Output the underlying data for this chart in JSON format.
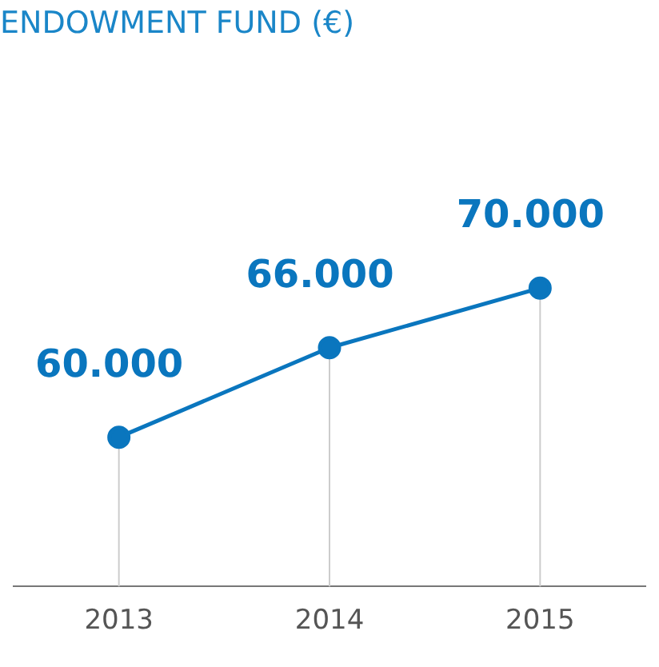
{
  "chart_data": {
    "type": "line",
    "title": "ENDOWMENT FUND (€)",
    "categories": [
      "2013",
      "2014",
      "2015"
    ],
    "series": [
      {
        "color": "#0a76be",
        "values": [
          60000,
          66000,
          70000
        ],
        "value_labels": [
          "60.000",
          "66.000",
          "70.000"
        ]
      }
    ],
    "tick_labels": "x",
    "marker": "circle",
    "legend": false,
    "grid": "x"
  }
}
